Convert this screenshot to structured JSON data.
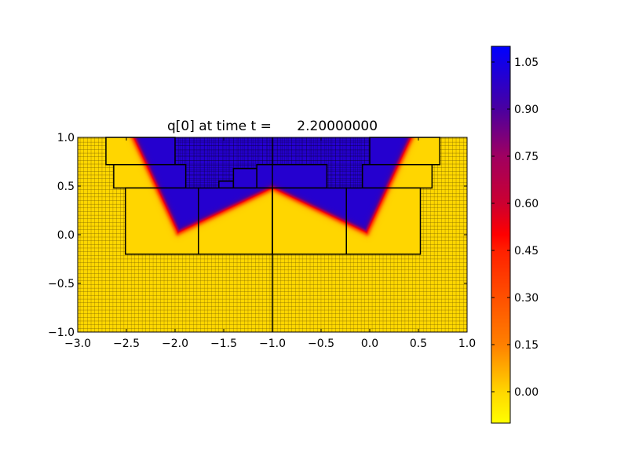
{
  "chart_data": {
    "type": "heatmap",
    "title": "q[0] at time t =      2.20000000",
    "xlim": [
      -3.0,
      1.0
    ],
    "ylim": [
      -1.0,
      1.0
    ],
    "xticks": [
      "−3.0",
      "−2.5",
      "−2.0",
      "−1.5",
      "−1.0",
      "−0.5",
      "0.0",
      "0.5",
      "1.0"
    ],
    "xtick_values": [
      -3.0,
      -2.5,
      -2.0,
      -1.5,
      -1.0,
      -0.5,
      0.0,
      0.5,
      1.0
    ],
    "yticks": [
      "−1.0",
      "−0.5",
      "0.0",
      "0.5",
      "1.0"
    ],
    "ytick_values": [
      -1.0,
      -0.5,
      0.0,
      0.5,
      1.0
    ],
    "field": {
      "description_values": {
        "inside": 1.0,
        "outside": 0.0
      },
      "front_polyline": [
        [
          -2.45,
          1.05
        ],
        [
          -1.97,
          0.02
        ],
        [
          -1.0,
          0.48
        ],
        [
          -0.03,
          0.02
        ],
        [
          0.45,
          1.05
        ]
      ],
      "front_width": 0.03
    },
    "patches": [
      [
        -2.71,
        -2.0,
        0.72,
        1.0
      ],
      [
        0.0,
        0.72,
        0.72,
        1.0
      ],
      [
        -2.63,
        -1.89,
        0.48,
        0.72
      ],
      [
        -0.075,
        0.64,
        0.48,
        0.72
      ],
      [
        -1.55,
        -1.4,
        0.48,
        0.55
      ],
      [
        -1.4,
        -1.16,
        0.48,
        0.68
      ],
      [
        -1.16,
        -0.44,
        0.48,
        0.72
      ],
      [
        -2.51,
        -1.76,
        -0.2,
        0.48
      ],
      [
        -1.76,
        -1.0,
        -0.2,
        0.48
      ],
      [
        -1.0,
        -0.24,
        -0.2,
        0.48
      ],
      [
        -0.24,
        0.52,
        -0.2,
        0.48
      ]
    ],
    "fine_mesh_region": [
      -2.0,
      0.0,
      0.48,
      1.0
    ],
    "colorbar": {
      "clim": [
        -0.1,
        1.1
      ],
      "ticks": [
        "1.05",
        "0.90",
        "0.75",
        "0.60",
        "0.45",
        "0.30",
        "0.15",
        "0.00"
      ],
      "tick_values": [
        1.05,
        0.9,
        0.75,
        0.6,
        0.45,
        0.3,
        0.15,
        0.0
      ],
      "colormap_stops": [
        [
          -0.1,
          "#ffff00"
        ],
        [
          0.0,
          "#ffd600"
        ],
        [
          0.15,
          "#ff8000"
        ],
        [
          0.45,
          "#ff2000"
        ],
        [
          0.5,
          "#ff0000"
        ],
        [
          0.6,
          "#cc0030"
        ],
        [
          0.75,
          "#a00060"
        ],
        [
          0.9,
          "#4a00a0"
        ],
        [
          1.1,
          "#0000ff"
        ]
      ]
    }
  }
}
